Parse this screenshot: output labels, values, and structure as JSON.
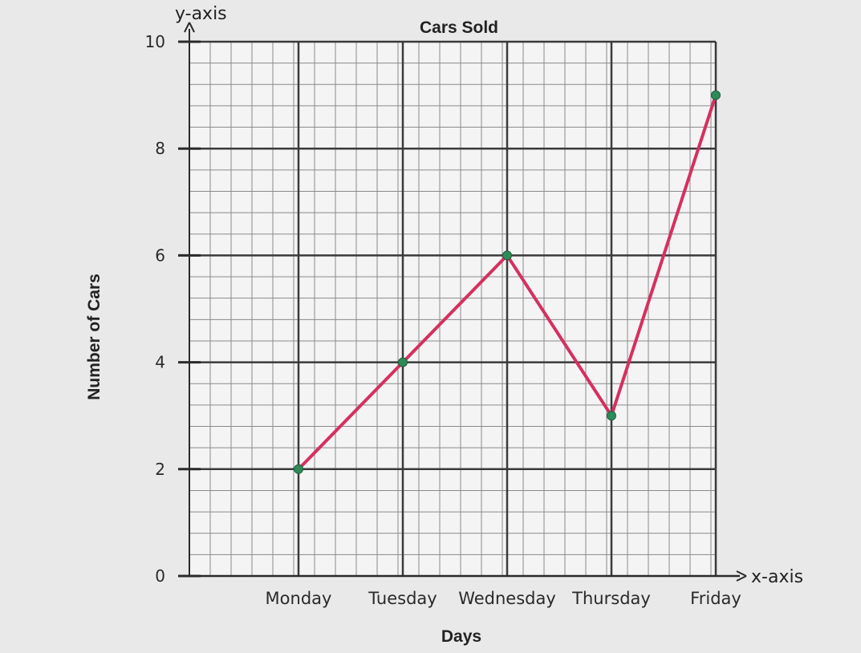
{
  "chart_data": {
    "type": "line",
    "title": "Cars Sold",
    "xlabel": "Days",
    "ylabel": "Number of Cars",
    "x_axis_name": "x-axis",
    "y_axis_name": "y-axis",
    "categories": [
      "Monday",
      "Tuesday",
      "Wednesday",
      "Thursday",
      "Friday"
    ],
    "series": [
      {
        "values": [
          2,
          4,
          6,
          3,
          9
        ]
      }
    ],
    "ylim": [
      0,
      10
    ],
    "y_ticks": [
      0,
      2,
      4,
      6,
      8,
      10
    ],
    "grid": true,
    "colors": {
      "line": "#d5305f",
      "point": "#2e8b57",
      "grid_major": "#3a3a3a",
      "grid_minor": "#8a8a8a",
      "paper": "#f4f4f4"
    }
  }
}
